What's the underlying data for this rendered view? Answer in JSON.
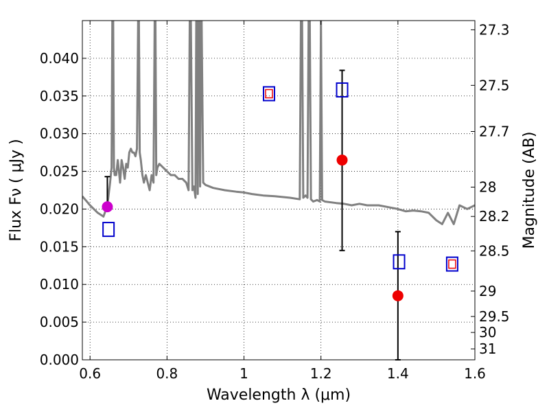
{
  "chart_data": {
    "type": "scatter",
    "title": "",
    "xlabel": "Wavelength  λ (μm)",
    "ylabel": "Flux  Fν  ( μJy )",
    "ylabel_right": "Magnitude (AB)",
    "xlim": [
      0.58,
      1.6
    ],
    "ylim": [
      0.0,
      0.045
    ],
    "grid": true,
    "x_ticks": [
      0.6,
      0.8,
      1.0,
      1.2,
      1.4,
      1.6
    ],
    "x_tick_labels": [
      "0.6",
      "0.8",
      "1",
      "1.2",
      "1.4",
      "1.6"
    ],
    "y_ticks": [
      0.0,
      0.005,
      0.01,
      0.015,
      0.02,
      0.025,
      0.03,
      0.035,
      0.04
    ],
    "y_tick_labels": [
      "0.000",
      "0.005",
      "0.010",
      "0.015",
      "0.020",
      "0.025",
      "0.030",
      "0.035",
      "0.040"
    ],
    "right_ticks": [
      {
        "flux": 0.04378,
        "label": "27.3"
      },
      {
        "flux": 0.03641,
        "label": "27.5"
      },
      {
        "flux": 0.03029,
        "label": "27.7"
      },
      {
        "flux": 0.02291,
        "label": "28"
      },
      {
        "flux": 0.01902,
        "label": "28.2"
      },
      {
        "flux": 0.01445,
        "label": "28.5"
      },
      {
        "flux": 0.00912,
        "label": "29"
      },
      {
        "flux": 0.00575,
        "label": "29.5"
      },
      {
        "flux": 0.00363,
        "label": "30"
      },
      {
        "flux": 0.00145,
        "label": "31"
      }
    ],
    "template_color": "#808080",
    "template_spectrum": {
      "x": [
        0.58,
        0.6,
        0.62,
        0.635,
        0.645,
        0.652,
        0.656,
        0.658,
        0.66,
        0.662,
        0.664,
        0.668,
        0.672,
        0.675,
        0.678,
        0.682,
        0.686,
        0.69,
        0.694,
        0.698,
        0.702,
        0.706,
        0.71,
        0.714,
        0.718,
        0.722,
        0.725,
        0.727,
        0.729,
        0.732,
        0.736,
        0.74,
        0.745,
        0.75,
        0.755,
        0.76,
        0.765,
        0.768,
        0.77,
        0.772,
        0.775,
        0.78,
        0.79,
        0.8,
        0.81,
        0.82,
        0.83,
        0.84,
        0.85,
        0.856,
        0.859,
        0.862,
        0.866,
        0.87,
        0.874,
        0.876,
        0.878,
        0.88,
        0.882,
        0.884,
        0.886,
        0.888,
        0.89,
        0.894,
        0.9,
        0.92,
        0.95,
        0.98,
        1.0,
        1.02,
        1.05,
        1.08,
        1.1,
        1.12,
        1.145,
        1.148,
        1.151,
        1.154,
        1.16,
        1.165,
        1.168,
        1.171,
        1.174,
        1.18,
        1.19,
        1.197,
        1.2,
        1.203,
        1.21,
        1.24,
        1.26,
        1.28,
        1.3,
        1.32,
        1.35,
        1.38,
        1.4,
        1.42,
        1.44,
        1.46,
        1.48,
        1.5,
        1.515,
        1.53,
        1.545,
        1.56,
        1.58,
        1.6
      ],
      "y": [
        0.0217,
        0.0205,
        0.0195,
        0.019,
        0.0205,
        0.0235,
        0.0255,
        0.045,
        0.045,
        0.0255,
        0.0245,
        0.0245,
        0.0265,
        0.025,
        0.0235,
        0.0265,
        0.0255,
        0.024,
        0.026,
        0.0255,
        0.0275,
        0.028,
        0.0275,
        0.0275,
        0.027,
        0.028,
        0.045,
        0.045,
        0.0275,
        0.0265,
        0.0245,
        0.0235,
        0.0245,
        0.0235,
        0.0225,
        0.0245,
        0.0235,
        0.045,
        0.045,
        0.0245,
        0.0255,
        0.026,
        0.0255,
        0.025,
        0.0245,
        0.0245,
        0.024,
        0.024,
        0.0235,
        0.0225,
        0.045,
        0.045,
        0.0225,
        0.023,
        0.0215,
        0.045,
        0.045,
        0.022,
        0.045,
        0.045,
        0.023,
        0.045,
        0.045,
        0.0235,
        0.0232,
        0.0228,
        0.0225,
        0.0223,
        0.0222,
        0.022,
        0.0218,
        0.0217,
        0.0216,
        0.0215,
        0.0213,
        0.045,
        0.045,
        0.0215,
        0.0218,
        0.0215,
        0.045,
        0.045,
        0.0213,
        0.021,
        0.0212,
        0.021,
        0.045,
        0.0212,
        0.021,
        0.0208,
        0.0207,
        0.0205,
        0.0207,
        0.0205,
        0.0205,
        0.0202,
        0.02,
        0.0197,
        0.0198,
        0.0197,
        0.0195,
        0.0185,
        0.018,
        0.0195,
        0.018,
        0.0205,
        0.02,
        0.0205
      ]
    },
    "series": [
      {
        "marker": "filled-circle",
        "color": "#cc00cc",
        "x": [
          0.645
        ],
        "y": [
          0.0203
        ],
        "yerr_low": [
          0.0203
        ],
        "yerr_high": [
          0.0243
        ]
      },
      {
        "marker": "filled-circle",
        "color": "#ee0000",
        "x": [
          1.255,
          1.4
        ],
        "y": [
          0.0265,
          0.0085
        ],
        "yerr_low": [
          0.0145,
          0.0
        ],
        "yerr_high": [
          0.0384,
          0.017
        ]
      },
      {
        "marker": "open-square",
        "color": "#0000cc",
        "x": [
          0.648,
          1.065,
          1.255,
          1.403,
          1.541
        ],
        "y": [
          0.0173,
          0.0353,
          0.0358,
          0.013,
          0.0127
        ]
      },
      {
        "marker": "small-open-square",
        "color": "#ee0000",
        "x": [
          1.065,
          1.541
        ],
        "y": [
          0.0353,
          0.0127
        ]
      }
    ],
    "errorbar_color": "#000000"
  }
}
